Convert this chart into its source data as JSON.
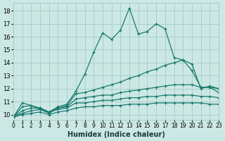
{
  "xlabel": "Humidex (Indice chaleur)",
  "x": [
    0,
    1,
    2,
    3,
    4,
    5,
    6,
    7,
    8,
    9,
    10,
    11,
    12,
    13,
    14,
    15,
    16,
    17,
    18,
    19,
    20,
    21,
    22,
    23
  ],
  "line1": [
    9.8,
    10.9,
    10.7,
    10.5,
    10.2,
    10.6,
    10.8,
    11.8,
    13.1,
    14.8,
    16.3,
    15.8,
    16.5,
    18.2,
    16.2,
    16.4,
    17.0,
    16.6,
    14.4,
    14.2,
    13.9,
    12.0,
    12.2,
    12.0
  ],
  "line2": [
    9.8,
    10.6,
    10.7,
    10.4,
    10.1,
    10.5,
    10.7,
    11.6,
    11.7,
    11.9,
    12.1,
    12.3,
    12.5,
    12.8,
    13.0,
    13.3,
    13.5,
    13.8,
    14.0,
    14.2,
    13.4,
    12.1,
    12.1,
    12.0
  ],
  "line3": [
    9.8,
    10.3,
    10.5,
    10.5,
    10.2,
    10.5,
    10.6,
    11.2,
    11.3,
    11.4,
    11.5,
    11.5,
    11.7,
    11.8,
    11.9,
    12.0,
    12.1,
    12.2,
    12.3,
    12.3,
    12.3,
    12.1,
    12.1,
    11.7
  ],
  "line4": [
    9.8,
    10.1,
    10.3,
    10.4,
    10.2,
    10.4,
    10.5,
    10.9,
    10.9,
    11.0,
    11.1,
    11.1,
    11.2,
    11.3,
    11.3,
    11.4,
    11.4,
    11.5,
    11.5,
    11.5,
    11.5,
    11.4,
    11.4,
    11.3
  ],
  "line5": [
    9.8,
    10.0,
    10.1,
    10.2,
    10.0,
    10.2,
    10.3,
    10.5,
    10.6,
    10.6,
    10.7,
    10.7,
    10.7,
    10.8,
    10.8,
    10.8,
    10.9,
    10.9,
    10.9,
    10.9,
    10.9,
    10.9,
    10.8,
    10.8
  ],
  "color": "#1a7a6e",
  "bg_color": "#cce8e4",
  "grid_color": "#aacfcb",
  "ylim": [
    9.6,
    18.6
  ],
  "xlim": [
    0,
    23
  ],
  "yticks": [
    10,
    11,
    12,
    13,
    14,
    15,
    16,
    17,
    18
  ],
  "xticks": [
    0,
    1,
    2,
    3,
    4,
    5,
    6,
    7,
    8,
    9,
    10,
    11,
    12,
    13,
    14,
    15,
    16,
    17,
    18,
    19,
    20,
    21,
    22,
    23
  ]
}
